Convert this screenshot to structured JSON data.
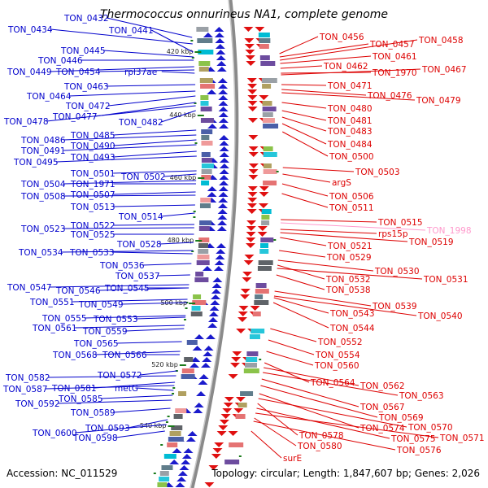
{
  "header": {
    "title": "Thermococcus onnurineus NA1, complete genome"
  },
  "footer": {
    "accession": "Accession: NC_011529",
    "summary": "Topology: circular; Length: 1,847,607 bp; Genes: 2,026"
  },
  "colors": {
    "left_labels": "#0000cc",
    "right_labels": "#dd0000",
    "highlight": "#ff99cc",
    "backbone": "#888888",
    "tick": "#1a7a1a"
  },
  "kbp_marks": [
    "420 kbp",
    "440 kbp",
    "460 kbp",
    "480 kbp",
    "500 kbp",
    "520 kbp",
    "540 kbp"
  ],
  "left_labels": [
    {
      "t": "TON_0432"
    },
    {
      "t": "TON_0434"
    },
    {
      "t": "TON_0441"
    },
    {
      "t": "TON_0445"
    },
    {
      "t": "TON_0446"
    },
    {
      "t": "TON_0449"
    },
    {
      "t": "TON_0454"
    },
    {
      "t": "rpl37ae"
    },
    {
      "t": "TON_0463"
    },
    {
      "t": "TON_0464"
    },
    {
      "t": "TON_0472"
    },
    {
      "t": "TON_0477"
    },
    {
      "t": "TON_0478"
    },
    {
      "t": "TON_0482"
    },
    {
      "t": "TON_0485"
    },
    {
      "t": "TON_0486"
    },
    {
      "t": "TON_0490"
    },
    {
      "t": "TON_0491"
    },
    {
      "t": "TON_0493"
    },
    {
      "t": "TON_0495"
    },
    {
      "t": "TON_0501"
    },
    {
      "t": "TON_0502"
    },
    {
      "t": "TON_0504"
    },
    {
      "t": "TON_1971"
    },
    {
      "t": "TON_0507"
    },
    {
      "t": "TON_0508"
    },
    {
      "t": "TON_0513"
    },
    {
      "t": "TON_0514"
    },
    {
      "t": "TON_0522"
    },
    {
      "t": "TON_0523"
    },
    {
      "t": "TON_0525"
    },
    {
      "t": "TON_0528"
    },
    {
      "t": "TON_0534"
    },
    {
      "t": "TON_0533"
    },
    {
      "t": "TON_0536"
    },
    {
      "t": "TON_0537"
    },
    {
      "t": "TON_0547"
    },
    {
      "t": "TON_0546"
    },
    {
      "t": "TON_0545"
    },
    {
      "t": "TON_0551"
    },
    {
      "t": "TON_0549"
    },
    {
      "t": "TON_0555"
    },
    {
      "t": "TON_0553"
    },
    {
      "t": "TON_0561"
    },
    {
      "t": "TON_0559"
    },
    {
      "t": "TON_0565"
    },
    {
      "t": "TON_0568"
    },
    {
      "t": "TON_0566"
    },
    {
      "t": "TON_0572"
    },
    {
      "t": "TON_0582"
    },
    {
      "t": "TON_0581"
    },
    {
      "t": "TON_0587"
    },
    {
      "t": "metG"
    },
    {
      "t": "TON_0585"
    },
    {
      "t": "TON_0592"
    },
    {
      "t": "TON_0589"
    },
    {
      "t": "TON_0593"
    },
    {
      "t": "TON_0600"
    },
    {
      "t": "TON_0598"
    }
  ],
  "right_labels": [
    {
      "t": "TON_0456"
    },
    {
      "t": "TON_0457"
    },
    {
      "t": "TON_0458"
    },
    {
      "t": "TON_0461"
    },
    {
      "t": "TON_0462"
    },
    {
      "t": "TON_1970"
    },
    {
      "t": "TON_0467"
    },
    {
      "t": "TON_0471"
    },
    {
      "t": "TON_0476"
    },
    {
      "t": "TON_0479"
    },
    {
      "t": "TON_0480"
    },
    {
      "t": "TON_0481"
    },
    {
      "t": "TON_0483"
    },
    {
      "t": "TON_0484"
    },
    {
      "t": "TON_0500"
    },
    {
      "t": "TON_0503"
    },
    {
      "t": "argS"
    },
    {
      "t": "TON_0506"
    },
    {
      "t": "TON_0511"
    },
    {
      "t": "TON_0515"
    },
    {
      "t": "TON_1998"
    },
    {
      "t": "rps15p"
    },
    {
      "t": "TON_0519"
    },
    {
      "t": "TON_0521"
    },
    {
      "t": "TON_0529"
    },
    {
      "t": "TON_0530"
    },
    {
      "t": "TON_0532"
    },
    {
      "t": "TON_0531"
    },
    {
      "t": "TON_0538"
    },
    {
      "t": "TON_0539"
    },
    {
      "t": "TON_0540"
    },
    {
      "t": "TON_0543"
    },
    {
      "t": "TON_0544"
    },
    {
      "t": "TON_0552"
    },
    {
      "t": "TON_0554"
    },
    {
      "t": "TON_0560"
    },
    {
      "t": "TON_0564"
    },
    {
      "t": "TON_0562"
    },
    {
      "t": "TON_0563"
    },
    {
      "t": "TON_0567"
    },
    {
      "t": "TON_0569"
    },
    {
      "t": "TON_0574"
    },
    {
      "t": "TON_0570"
    },
    {
      "t": "TON_0578"
    },
    {
      "t": "TON_0575"
    },
    {
      "t": "TON_0571"
    },
    {
      "t": "TON_0580"
    },
    {
      "t": "TON_0576"
    },
    {
      "t": "surE"
    }
  ]
}
